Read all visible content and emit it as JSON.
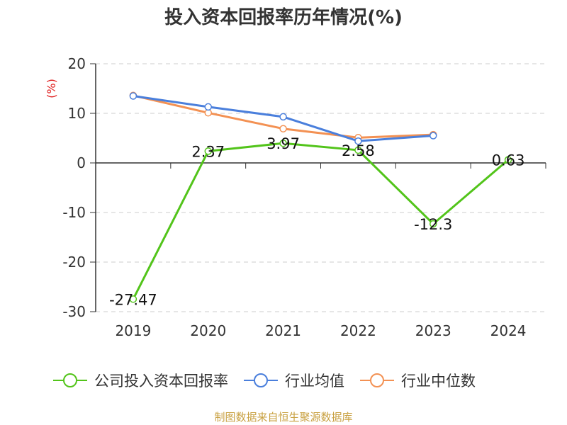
{
  "chart_data": {
    "type": "line",
    "title": "投入资本回报率历年情况(%)",
    "ylabel": "(%)",
    "categories": [
      "2019",
      "2020",
      "2021",
      "2022",
      "2023",
      "2024"
    ],
    "ylim": [
      -30,
      20
    ],
    "yticks": [
      "20",
      "10",
      "0",
      "-10",
      "-20",
      "-30"
    ],
    "grid": true,
    "legend_position": "bottom",
    "series": [
      {
        "name": "公司投入资本回报率",
        "color": "#52c41a",
        "values": [
          -27.47,
          2.37,
          3.97,
          2.58,
          -12.3,
          0.63
        ],
        "labels": [
          "-27.47",
          "2.37",
          "3.97",
          "2.58",
          "-12.3",
          "0.63"
        ]
      },
      {
        "name": "行业均值",
        "color": "#4a7fdc",
        "values": [
          13.5,
          11.3,
          9.3,
          4.4,
          5.5,
          null
        ]
      },
      {
        "name": "行业中位数",
        "color": "#f39153",
        "values": [
          13.6,
          10.1,
          6.9,
          5.1,
          5.7,
          null
        ]
      }
    ]
  },
  "source": "制图数据来自恒生聚源数据库"
}
